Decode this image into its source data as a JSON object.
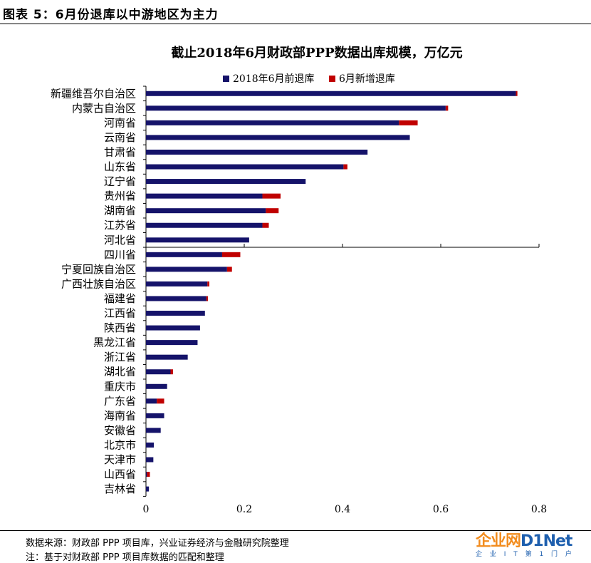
{
  "header": {
    "figure_label": "图表 5：6月份退库以中游地区为主力"
  },
  "footer": {
    "source": "数据来源：财政部 PPP 项目库，兴业证券经济与金融研究院整理",
    "note": "注：基于对财政部 PPP 项目库数据的匹配和整理",
    "watermark_main_a": "企业网",
    "watermark_main_b": "D1Net",
    "watermark_sub": "企 业 I T 第 1 门 户"
  },
  "colors": {
    "series1": "#15136a",
    "series2": "#c00000",
    "axis": "#000000"
  },
  "chart_data": {
    "type": "bar",
    "orientation": "horizontal",
    "stacked": true,
    "title": "截止2018年6月财政部PPP数据出库规模，万亿元",
    "xlabel": "",
    "ylabel": "",
    "xlim": [
      0,
      0.8
    ],
    "xticks": [
      0,
      0.2,
      0.4,
      0.6,
      0.8
    ],
    "xtick_labels": [
      "0",
      "0.2",
      "0.4",
      "0.6",
      "0.8"
    ],
    "grid": false,
    "legend_position": "top",
    "categories": [
      "新疆维吾尔自治区",
      "内蒙古自治区",
      "河南省",
      "云南省",
      "甘肃省",
      "山东省",
      "辽宁省",
      "贵州省",
      "湖南省",
      "江苏省",
      "河北省",
      "四川省",
      "宁夏回族自治区",
      "广西壮族自治区",
      "福建省",
      "江西省",
      "陕西省",
      "黑龙江省",
      "浙江省",
      "湖北省",
      "重庆市",
      "广东省",
      "海南省",
      "安徽省",
      "北京市",
      "天津市",
      "山西省",
      "吉林省"
    ],
    "series": [
      {
        "name": "2018年6月前退库",
        "values": [
          0.753,
          0.61,
          0.515,
          0.537,
          0.451,
          0.402,
          0.325,
          0.237,
          0.244,
          0.237,
          0.21,
          0.155,
          0.165,
          0.125,
          0.123,
          0.12,
          0.11,
          0.105,
          0.085,
          0.05,
          0.043,
          0.022,
          0.037,
          0.03,
          0.016,
          0.015,
          0.002,
          0.006
        ]
      },
      {
        "name": "6月新增退库",
        "values": [
          0.003,
          0.005,
          0.038,
          0.0,
          0.0,
          0.008,
          0.0,
          0.037,
          0.026,
          0.013,
          0.0,
          0.037,
          0.01,
          0.004,
          0.003,
          0.0,
          0.0,
          0.0,
          0.0,
          0.005,
          0.0,
          0.015,
          0.0,
          0.0,
          0.0,
          0.0,
          0.006,
          0.0
        ]
      }
    ]
  }
}
